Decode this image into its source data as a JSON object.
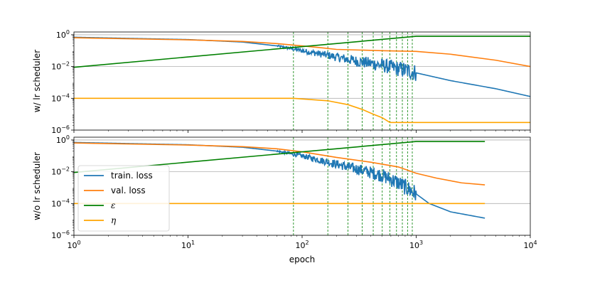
{
  "chart_data": [
    {
      "type": "line",
      "ylabel": "w/ lr scheduler",
      "xlabel": "",
      "x_scale": "log",
      "y_scale": "log",
      "xlim": [
        1,
        10000
      ],
      "ylim": [
        1e-06,
        1.5
      ],
      "grid": "y-major",
      "x_tick_labels": [],
      "y_tick_labels": [
        "10^0",
        "10^-2",
        "10^-4",
        "10^-6"
      ],
      "vlines": [
        84,
        168,
        252,
        336,
        420,
        504,
        588,
        672,
        756,
        840,
        924
      ],
      "series": [
        {
          "name": "train. loss",
          "color": "#1f77b4",
          "points": [
            [
              1,
              0.7
            ],
            [
              10,
              0.5
            ],
            [
              30,
              0.35
            ],
            [
              60,
              0.2
            ],
            [
              100,
              0.1
            ],
            [
              170,
              0.05
            ],
            [
              300,
              0.022
            ],
            [
              500,
              0.012
            ],
            [
              800,
              0.006
            ],
            [
              1000,
              0.004
            ],
            [
              2000,
              0.0013
            ],
            [
              5000,
              0.0004
            ],
            [
              10000,
              0.00013
            ]
          ],
          "noise_from": 60,
          "noise_to": 1000
        },
        {
          "name": "val. loss",
          "color": "#ff7f0e",
          "points": [
            [
              1,
              0.65
            ],
            [
              10,
              0.48
            ],
            [
              30,
              0.38
            ],
            [
              60,
              0.28
            ],
            [
              100,
              0.2
            ],
            [
              150,
              0.15
            ],
            [
              200,
              0.12
            ],
            [
              500,
              0.1
            ],
            [
              1000,
              0.09
            ],
            [
              2000,
              0.06
            ],
            [
              5000,
              0.025
            ],
            [
              10000,
              0.01
            ]
          ]
        },
        {
          "name": "ε",
          "color": "#008000",
          "points": [
            [
              1,
              0.009
            ],
            [
              1000,
              0.8
            ],
            [
              10000,
              0.8
            ]
          ]
        },
        {
          "name": "η",
          "color": "#ffa500",
          "points": [
            [
              1,
              0.0001
            ],
            [
              84,
              0.0001
            ],
            [
              168,
              7e-05
            ],
            [
              252,
              4e-05
            ],
            [
              336,
              2e-05
            ],
            [
              420,
              1e-05
            ],
            [
              504,
              6e-06
            ],
            [
              588,
              3e-06
            ],
            [
              10000,
              3e-06
            ]
          ]
        }
      ]
    },
    {
      "type": "line",
      "ylabel": "w/o lr scheduler",
      "xlabel": "epoch",
      "x_scale": "log",
      "y_scale": "log",
      "xlim": [
        1,
        10000
      ],
      "ylim": [
        1e-06,
        1.5
      ],
      "grid": "y-major",
      "x_tick_labels": [
        "10^0",
        "10^1",
        "10^2",
        "10^3",
        "10^4"
      ],
      "y_tick_labels": [
        "10^0",
        "10^-2",
        "10^-4",
        "10^-6"
      ],
      "vlines": [
        84,
        168,
        252,
        336,
        420,
        504,
        588,
        672,
        756,
        840,
        924
      ],
      "legend": {
        "placement": "lower-left",
        "entries": [
          "train. loss",
          "val. loss",
          "ε",
          "η"
        ]
      },
      "series": [
        {
          "name": "train. loss",
          "color": "#1f77b4",
          "points": [
            [
              1,
              0.7
            ],
            [
              10,
              0.5
            ],
            [
              30,
              0.35
            ],
            [
              60,
              0.2
            ],
            [
              100,
              0.1
            ],
            [
              170,
              0.04
            ],
            [
              300,
              0.015
            ],
            [
              500,
              0.006
            ],
            [
              700,
              0.002
            ],
            [
              1000,
              0.0004
            ],
            [
              1300,
              0.0001
            ],
            [
              2000,
              3e-05
            ],
            [
              4000,
              1.2e-05
            ]
          ],
          "noise_from": 60,
          "noise_to": 1000
        },
        {
          "name": "val. loss",
          "color": "#ff7f0e",
          "points": [
            [
              1,
              0.65
            ],
            [
              10,
              0.48
            ],
            [
              30,
              0.38
            ],
            [
              60,
              0.28
            ],
            [
              100,
              0.18
            ],
            [
              200,
              0.08
            ],
            [
              400,
              0.04
            ],
            [
              700,
              0.02
            ],
            [
              1000,
              0.008
            ],
            [
              1500,
              0.004
            ],
            [
              2500,
              0.002
            ],
            [
              4000,
              0.0015
            ]
          ]
        },
        {
          "name": "ε",
          "color": "#008000",
          "points": [
            [
              1,
              0.009
            ],
            [
              1000,
              0.8
            ],
            [
              4000,
              0.8
            ]
          ]
        },
        {
          "name": "η",
          "color": "#ffa500",
          "points": [
            [
              1,
              0.0001
            ],
            [
              4000,
              0.0001
            ]
          ]
        }
      ]
    }
  ]
}
